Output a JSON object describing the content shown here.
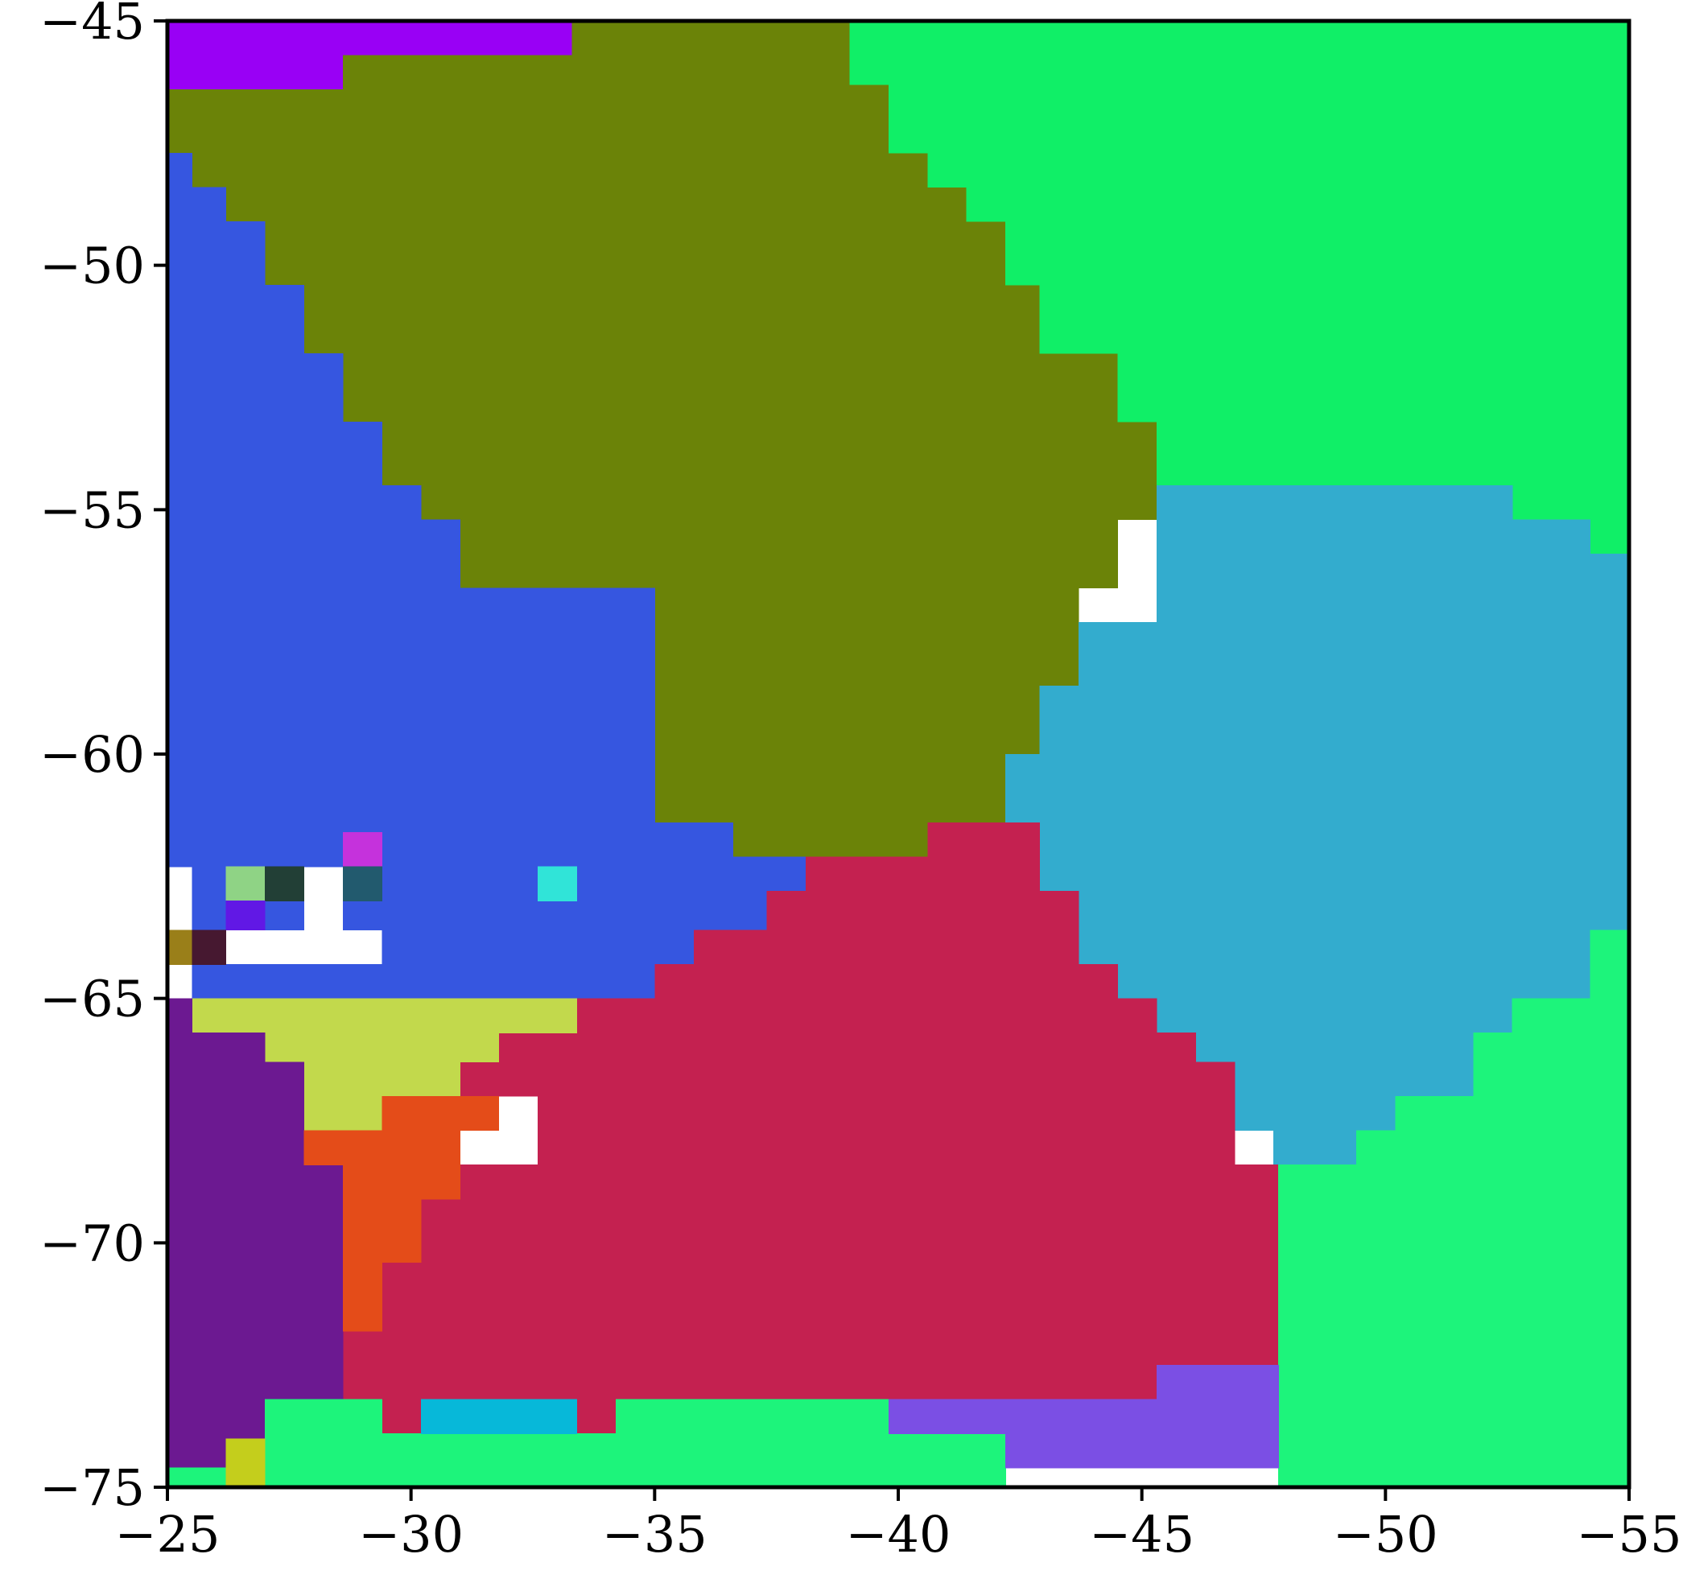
{
  "chart_data": {
    "type": "heatmap",
    "title": "",
    "xlabel": "",
    "ylabel": "",
    "x_range": [
      -25,
      -55
    ],
    "y_range": [
      -75,
      -45
    ],
    "x_ticks": [
      -25,
      -30,
      -35,
      -40,
      -45,
      -50,
      -55
    ],
    "y_ticks": [
      -75,
      -70,
      -65,
      -60,
      -55,
      -50,
      -45
    ],
    "x_tick_labels": [
      "−25",
      "−30",
      "−35",
      "−40",
      "−45",
      "−50",
      "−55"
    ],
    "y_tick_labels": [
      "−75",
      "−70",
      "−65",
      "−60",
      "−55",
      "−50",
      "−45"
    ],
    "grid": false,
    "legend": "none",
    "grid_cells": [
      38,
      44
    ],
    "cell_size": [
      0.789,
      0.682
    ],
    "note_units": "each region lists cell rectangles as [x_start, x_end, y_bottom, y_top] in axis data units",
    "regions": [
      {
        "color": "#9900f5",
        "cells": [
          [
            -25,
            -28.6,
            -46.4,
            -45
          ],
          [
            -28.6,
            -33.3,
            -45.7,
            -45
          ]
        ]
      },
      {
        "color": "#6b8308",
        "cells": [
          [
            -25,
            -28.6,
            -47.7,
            -46.4
          ],
          [
            -28.6,
            -33.3,
            -47.7,
            -45.7
          ],
          [
            -33.3,
            -39,
            -47.7,
            -45
          ],
          [
            -39,
            -39.8,
            -47.7,
            -46.3
          ],
          [
            -25.5,
            -28.6,
            -48.4,
            -47.7
          ],
          [
            -28.6,
            -40.6,
            -48.4,
            -47.7
          ],
          [
            -26.2,
            -41.4,
            -49.1,
            -48.4
          ],
          [
            -27,
            -42.2,
            -50.4,
            -49.1
          ],
          [
            -27.8,
            -42.9,
            -51.8,
            -50.4
          ],
          [
            -28.6,
            -44.5,
            -53.2,
            -51.8
          ],
          [
            -29.4,
            -45.3,
            -54.5,
            -53.2
          ],
          [
            -30.2,
            -45.3,
            -55.2,
            -54.5
          ],
          [
            -31,
            -44.5,
            -56.6,
            -55.2
          ],
          [
            -31.8,
            -43.7,
            -57.3,
            -56.6
          ],
          [
            -32.6,
            -43.7,
            -58.6,
            -57.3
          ],
          [
            -33.4,
            -43.7,
            -60,
            -58.6
          ],
          [
            -35,
            -42.9,
            -61.4,
            -60
          ],
          [
            -36.6,
            -42.2,
            -62.1,
            -61.4
          ],
          [
            -38.1,
            -40.6,
            -62.8,
            -62.1
          ]
        ]
      },
      {
        "color": "#10ef67",
        "cells": [
          [
            -39,
            -55,
            -46.3,
            -45
          ],
          [
            -39.8,
            -55,
            -47.7,
            -46.3
          ],
          [
            -40.6,
            -55,
            -48.4,
            -47.7
          ],
          [
            -41.4,
            -55,
            -49.1,
            -48.4
          ],
          [
            -42.2,
            -55,
            -50.4,
            -49.1
          ],
          [
            -42.9,
            -55,
            -51.8,
            -50.4
          ],
          [
            -44.5,
            -55,
            -53.2,
            -51.8
          ],
          [
            -45.3,
            -55,
            -54.5,
            -53.2
          ],
          [
            -52.6,
            -55,
            -55.2,
            -54.5
          ],
          [
            -54.2,
            -55,
            -55.9,
            -55.2
          ]
        ]
      },
      {
        "color": "#3656e0",
        "cells": [
          [
            -25,
            -25.5,
            -62.3,
            -47.7
          ],
          [
            -25.5,
            -26.2,
            -63.6,
            -48.4
          ],
          [
            -26.2,
            -27,
            -63,
            -49.1
          ],
          [
            -27,
            -27.8,
            -63.6,
            -50.4
          ],
          [
            -27.8,
            -28.6,
            -62.3,
            -51.8
          ],
          [
            -28.6,
            -29.4,
            -63.6,
            -53.2
          ],
          [
            -29.4,
            -30.2,
            -64.3,
            -54.5
          ],
          [
            -30.2,
            -31,
            -64.3,
            -55.2
          ],
          [
            -31,
            -35,
            -64.3,
            -56.6
          ],
          [
            -35,
            -36.6,
            -64.3,
            -61.4
          ],
          [
            -36.6,
            -38.1,
            -63.6,
            -62.1
          ],
          [
            -25.5,
            -35,
            -65,
            -64.3
          ]
        ]
      },
      {
        "color": "#33acce",
        "cells": [
          [
            -45.3,
            -52.6,
            -57.3,
            -54.5
          ],
          [
            -52.6,
            -54.2,
            -57.3,
            -55.2
          ],
          [
            -54.2,
            -55,
            -57.3,
            -55.9
          ],
          [
            -43.7,
            -55,
            -58.6,
            -57.3
          ],
          [
            -42.9,
            -55,
            -60,
            -58.6
          ],
          [
            -42.2,
            -55,
            -61.4,
            -60
          ],
          [
            -42.9,
            -55,
            -63.6,
            -61.4
          ],
          [
            -43.7,
            -55,
            -64.3,
            -63.6
          ],
          [
            -43.7,
            -54.2,
            -65,
            -64.3
          ],
          [
            -45.3,
            -52.6,
            -65.7,
            -65
          ],
          [
            -46.1,
            -51.8,
            -67,
            -65.7
          ],
          [
            -46.9,
            -50.2,
            -67.7,
            -67
          ],
          [
            -47.7,
            -49.4,
            -68.4,
            -67.7
          ]
        ]
      },
      {
        "color": "#c42150",
        "cells": [
          [
            -40.6,
            -42.9,
            -62.1,
            -61.4
          ],
          [
            -38.1,
            -42.9,
            -62.8,
            -62.1
          ],
          [
            -37.3,
            -43.7,
            -63.6,
            -62.8
          ],
          [
            -35.8,
            -43.7,
            -64.3,
            -63.6
          ],
          [
            -35,
            -44.5,
            -65,
            -64.3
          ],
          [
            -33.4,
            -45.3,
            -65.7,
            -65
          ],
          [
            -31.8,
            -46.1,
            -66.3,
            -65.7
          ],
          [
            -31,
            -46.9,
            -67,
            -66.3
          ],
          [
            -32.6,
            -46.9,
            -68.4,
            -67
          ],
          [
            -31,
            -48.6,
            -69.1,
            -68.4
          ],
          [
            -30.2,
            -47.8,
            -69.8,
            -69.1
          ],
          [
            -30.2,
            -48.6,
            -70.4,
            -69.8
          ],
          [
            -29.4,
            -47.8,
            -71.8,
            -70.4
          ],
          [
            -28.6,
            -47.8,
            -73.2,
            -71.8
          ],
          [
            -28.6,
            -45.3,
            -73.2,
            -72.5
          ],
          [
            -29.4,
            -30.2,
            -73.9,
            -73.2
          ],
          [
            -33.4,
            -34.2,
            -73.9,
            -73.2
          ]
        ]
      },
      {
        "color": "#c2d94c",
        "cells": [
          [
            -25.5,
            -33.4,
            -65.7,
            -65
          ],
          [
            -27,
            -31.8,
            -66.3,
            -65.7
          ],
          [
            -27.8,
            -31,
            -67,
            -66.3
          ],
          [
            -27.8,
            -29.4,
            -67.7,
            -67
          ]
        ]
      },
      {
        "color": "#6c1991",
        "cells": [
          [
            -25,
            -25.5,
            -74.6,
            -65
          ],
          [
            -25.5,
            -27,
            -75,
            -65.7
          ],
          [
            -27,
            -27.8,
            -73.2,
            -66.3
          ],
          [
            -27.8,
            -28.6,
            -73.2,
            -68.4
          ]
        ]
      },
      {
        "color": "#e44c19",
        "cells": [
          [
            -29.4,
            -31.8,
            -67.7,
            -67
          ],
          [
            -27.8,
            -31,
            -68.4,
            -67.7
          ],
          [
            -28.6,
            -31,
            -69.1,
            -68.4
          ],
          [
            -28.6,
            -30.2,
            -70.4,
            -69.1
          ],
          [
            -28.6,
            -29.4,
            -71.8,
            -70.4
          ]
        ]
      },
      {
        "color": "#1df47b",
        "cells": [
          [
            -25,
            -26.2,
            -75,
            -74.6
          ],
          [
            -27,
            -29.4,
            -75,
            -73.2
          ],
          [
            -29.4,
            -42.2,
            -75,
            -73.9
          ],
          [
            -34.2,
            -39.8,
            -73.9,
            -73.2
          ],
          [
            -47.8,
            -55,
            -75,
            -68.4
          ],
          [
            -48.6,
            -55,
            -70.4,
            -69.8
          ],
          [
            -49.4,
            -55,
            -68.4,
            -67.7
          ],
          [
            -50.2,
            -55,
            -67.7,
            -67
          ],
          [
            -51.8,
            -55,
            -67,
            -65.7
          ],
          [
            -52.6,
            -55,
            -65.7,
            -65
          ],
          [
            -54.2,
            -55,
            -65,
            -63.6
          ]
        ]
      },
      {
        "color": "#7b4fe4",
        "cells": [
          [
            -39.8,
            -47.8,
            -73.9,
            -73.2
          ],
          [
            -42.2,
            -47.8,
            -74.6,
            -73.9
          ],
          [
            -45.3,
            -47.8,
            -73.2,
            -72.5
          ]
        ]
      },
      {
        "color": "#07b8d9",
        "cells": [
          [
            -30.2,
            -33.4,
            -73.9,
            -73.2
          ]
        ]
      },
      {
        "color": "#c4ce1c",
        "cells": [
          [
            -26.2,
            -27,
            -75,
            -74
          ]
        ]
      },
      {
        "color": "#c532dc",
        "cells": [
          [
            -28.6,
            -29.4,
            -62.3,
            -61.6
          ]
        ]
      },
      {
        "color": "#8fd385",
        "cells": [
          [
            -26.2,
            -27,
            -63,
            -62.3
          ]
        ]
      },
      {
        "color": "#223f36",
        "cells": [
          [
            -27,
            -27.8,
            -63,
            -62.3
          ]
        ]
      },
      {
        "color": "#225a6e",
        "cells": [
          [
            -28.6,
            -29.4,
            -63,
            -62.3
          ]
        ]
      },
      {
        "color": "#30e4d8",
        "cells": [
          [
            -32.6,
            -33.4,
            -63,
            -62.3
          ]
        ]
      },
      {
        "color": "#6118e5",
        "cells": [
          [
            -26.2,
            -27,
            -63.6,
            -63
          ]
        ]
      },
      {
        "color": "#9a7f19",
        "cells": [
          [
            -25,
            -25.5,
            -64.3,
            -63.6
          ]
        ]
      },
      {
        "color": "#461830",
        "cells": [
          [
            -25.5,
            -26.2,
            -64.3,
            -63.6
          ]
        ]
      }
    ]
  }
}
